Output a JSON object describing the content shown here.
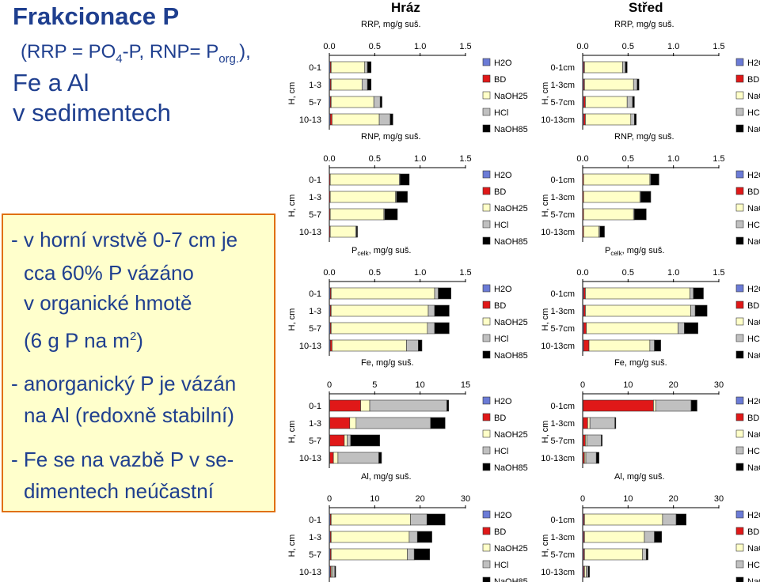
{
  "slide": {
    "title_line1": "Frakcionace P",
    "title_line2_a": "(RRP = PO",
    "title_line2_sub1": "4",
    "title_line2_b": "-P, RNP= P",
    "title_line2_sub2": "org.",
    "title_line2_c": "),",
    "title_line3": "Fe a Al",
    "title_line4": "v sedimentech",
    "column_headers": [
      "Hráz",
      "Střed"
    ],
    "notes": [
      "- v horní vrstvě 0-7 cm je",
      "cca 60% P vázáno",
      "v organické hmotě",
      "(6 g P na m",
      "- anorganický P je vázán",
      "na Al (redoxně stabilní)",
      "- Fe se na vazbě P v se-",
      "dimentech neúčastní"
    ],
    "note_sup": "2",
    "note_tail": ")"
  },
  "fractions": [
    {
      "name": "H2O",
      "color": "#6b7bd6"
    },
    {
      "name": "BD",
      "color": "#e01818"
    },
    {
      "name": "NaOH25",
      "color": "#ffffc8"
    },
    {
      "name": "HCl",
      "color": "#c0c0c0"
    },
    {
      "name": "NaOH85",
      "color": "#000000"
    }
  ],
  "ylabel": "H, cm",
  "chart_data": [
    {
      "type": "bar",
      "orientation": "horizontal",
      "stacked": true,
      "site": "Hráz",
      "title": "RRP, mg/g suš.",
      "categories": [
        "0-1",
        "1-3",
        "5-7",
        "10-13"
      ],
      "xlim": [
        0,
        1.5
      ],
      "xticks": [
        "0.0",
        "0.5",
        "1.0",
        "1.5"
      ],
      "series": [
        {
          "name": "H2O",
          "values": [
            0.01,
            0.01,
            0.01,
            0.01
          ]
        },
        {
          "name": "BD",
          "values": [
            0.01,
            0.01,
            0.01,
            0.02
          ]
        },
        {
          "name": "NaOH25",
          "values": [
            0.37,
            0.34,
            0.47,
            0.52
          ]
        },
        {
          "name": "HCl",
          "values": [
            0.03,
            0.06,
            0.07,
            0.12
          ]
        },
        {
          "name": "NaOH85",
          "values": [
            0.04,
            0.04,
            0.02,
            0.03
          ]
        }
      ]
    },
    {
      "type": "bar",
      "orientation": "horizontal",
      "stacked": true,
      "site": "Střed",
      "title": "RRP, mg/g suš.",
      "categories": [
        "0-1cm",
        "1-3cm",
        "5-7cm",
        "10-13cm"
      ],
      "xlim": [
        0,
        1.5
      ],
      "xticks": [
        "0.0",
        "0.5",
        "1.0",
        "1.5"
      ],
      "series": [
        {
          "name": "H2O",
          "values": [
            0.01,
            0.01,
            0.01,
            0.01
          ]
        },
        {
          "name": "BD",
          "values": [
            0.01,
            0.01,
            0.02,
            0.02
          ]
        },
        {
          "name": "NaOH25",
          "values": [
            0.42,
            0.54,
            0.46,
            0.5
          ]
        },
        {
          "name": "HCl",
          "values": [
            0.03,
            0.04,
            0.06,
            0.04
          ]
        },
        {
          "name": "NaOH85",
          "values": [
            0.02,
            0.02,
            0.02,
            0.02
          ]
        }
      ]
    },
    {
      "type": "bar",
      "orientation": "horizontal",
      "stacked": true,
      "site": "Hráz",
      "title": "RNP, mg/g suš.",
      "categories": [
        "0-1",
        "1-3",
        "5-7",
        "10-13"
      ],
      "xlim": [
        0,
        1.5
      ],
      "xticks": [
        "0.0",
        "0.5",
        "1.0",
        "1.5"
      ],
      "series": [
        {
          "name": "H2O",
          "values": [
            0,
            0,
            0,
            0
          ]
        },
        {
          "name": "BD",
          "values": [
            0.01,
            0.01,
            0.01,
            0.01
          ]
        },
        {
          "name": "NaOH25",
          "values": [
            0.76,
            0.72,
            0.59,
            0.28
          ]
        },
        {
          "name": "HCl",
          "values": [
            0.01,
            0.01,
            0.01,
            0.01
          ]
        },
        {
          "name": "NaOH85",
          "values": [
            0.1,
            0.12,
            0.14,
            0.01
          ]
        }
      ]
    },
    {
      "type": "bar",
      "orientation": "horizontal",
      "stacked": true,
      "site": "Střed",
      "title": "RNP, mg/g suš.",
      "categories": [
        "0-1cm",
        "1-3cm",
        "5-7cm",
        "10-13cm"
      ],
      "xlim": [
        0,
        1.5
      ],
      "xticks": [
        "0.0",
        "0.5",
        "1.0",
        "1.5"
      ],
      "series": [
        {
          "name": "H2O",
          "values": [
            0,
            0,
            0,
            0
          ]
        },
        {
          "name": "BD",
          "values": [
            0.01,
            0.01,
            0.01,
            0.01
          ]
        },
        {
          "name": "NaOH25",
          "values": [
            0.73,
            0.62,
            0.55,
            0.17
          ]
        },
        {
          "name": "HCl",
          "values": [
            0.01,
            0.01,
            0.01,
            0.01
          ]
        },
        {
          "name": "NaOH85",
          "values": [
            0.09,
            0.11,
            0.13,
            0.05
          ]
        }
      ]
    },
    {
      "type": "bar",
      "orientation": "horizontal",
      "stacked": true,
      "site": "Hráz",
      "title_main": "P",
      "title_sub": "celk",
      "title_rest": ", mg/g suš.",
      "categories": [
        "0-1",
        "1-3",
        "5-7",
        "10-13"
      ],
      "xlim": [
        0,
        1.5
      ],
      "xticks": [
        "0.0",
        "0.5",
        "1.0",
        "1.5"
      ],
      "series": [
        {
          "name": "H2O",
          "values": [
            0.01,
            0.01,
            0.01,
            0.01
          ]
        },
        {
          "name": "BD",
          "values": [
            0.01,
            0.01,
            0.01,
            0.02
          ]
        },
        {
          "name": "NaOH25",
          "values": [
            1.14,
            1.07,
            1.06,
            0.82
          ]
        },
        {
          "name": "HCl",
          "values": [
            0.04,
            0.07,
            0.08,
            0.13
          ]
        },
        {
          "name": "NaOH85",
          "values": [
            0.14,
            0.16,
            0.16,
            0.04
          ]
        }
      ]
    },
    {
      "type": "bar",
      "orientation": "horizontal",
      "stacked": true,
      "site": "Střed",
      "title_main": "P",
      "title_sub": "celk",
      "title_rest": ", mg/g suš.",
      "categories": [
        "0-1cm",
        "1-3cm",
        "5-7cm",
        "10-13cm"
      ],
      "xlim": [
        0,
        1.5
      ],
      "xticks": [
        "0.0",
        "0.5",
        "1.0",
        "1.5"
      ],
      "series": [
        {
          "name": "H2O",
          "values": [
            0.01,
            0.01,
            0.01,
            0.01
          ]
        },
        {
          "name": "BD",
          "values": [
            0.02,
            0.02,
            0.03,
            0.06
          ]
        },
        {
          "name": "NaOH25",
          "values": [
            1.15,
            1.16,
            1.01,
            0.67
          ]
        },
        {
          "name": "HCl",
          "values": [
            0.04,
            0.05,
            0.07,
            0.05
          ]
        },
        {
          "name": "NaOH85",
          "values": [
            0.11,
            0.13,
            0.15,
            0.07
          ]
        }
      ]
    },
    {
      "type": "bar",
      "orientation": "horizontal",
      "stacked": true,
      "site": "Hráz",
      "title": "Fe, mg/g suš.",
      "categories": [
        "0-1",
        "1-3",
        "5-7",
        "10-13"
      ],
      "xlim": [
        0,
        15
      ],
      "xticks": [
        "0",
        "5",
        "10",
        "15"
      ],
      "series": [
        {
          "name": "H2O",
          "values": [
            0.05,
            0.05,
            0.05,
            0.05
          ]
        },
        {
          "name": "BD",
          "values": [
            3.4,
            2.2,
            1.6,
            0.4
          ]
        },
        {
          "name": "NaOH25",
          "values": [
            1.0,
            0.7,
            0.3,
            0.5
          ]
        },
        {
          "name": "HCl",
          "values": [
            8.5,
            8.2,
            0.4,
            4.5
          ]
        },
        {
          "name": "NaOH85",
          "values": [
            0.2,
            1.6,
            3.2,
            0.3
          ]
        }
      ]
    },
    {
      "type": "bar",
      "orientation": "horizontal",
      "stacked": true,
      "site": "Střed",
      "title": "Fe, mg/g suš.",
      "categories": [
        "0-1cm",
        "1-3cm",
        "5-7cm",
        "10-13cm"
      ],
      "xlim": [
        0,
        30
      ],
      "xticks": [
        "0",
        "10",
        "20",
        "30"
      ],
      "series": [
        {
          "name": "H2O",
          "values": [
            0.1,
            0.1,
            0.1,
            0.1
          ]
        },
        {
          "name": "BD",
          "values": [
            15.5,
            1.0,
            0.5,
            0.3
          ]
        },
        {
          "name": "NaOH25",
          "values": [
            0.5,
            0.5,
            0.3,
            0.3
          ]
        },
        {
          "name": "HCl",
          "values": [
            7.8,
            5.5,
            3.2,
            2.3
          ]
        },
        {
          "name": "NaOH85",
          "values": [
            1.3,
            0.2,
            0.2,
            0.6
          ]
        }
      ]
    },
    {
      "type": "bar",
      "orientation": "horizontal",
      "stacked": true,
      "site": "Hráz",
      "title": "Al, mg/g suš.",
      "categories": [
        "0-1",
        "1-3",
        "5-7",
        "10-13"
      ],
      "xlim": [
        0,
        30
      ],
      "xticks": [
        "0",
        "10",
        "20",
        "30"
      ],
      "series": [
        {
          "name": "H2O",
          "values": [
            0.2,
            0.2,
            0.2,
            0.2
          ]
        },
        {
          "name": "BD",
          "values": [
            0.2,
            0.2,
            0.2,
            0.2
          ]
        },
        {
          "name": "NaOH25",
          "values": [
            17.5,
            17.2,
            16.8,
            0.3
          ]
        },
        {
          "name": "HCl",
          "values": [
            3.6,
            1.8,
            1.5,
            0.5
          ]
        },
        {
          "name": "NaOH85",
          "values": [
            4.0,
            3.2,
            3.4,
            0.2
          ]
        }
      ]
    },
    {
      "type": "bar",
      "orientation": "horizontal",
      "stacked": true,
      "site": "Střed",
      "title": "Al, mg/g suš.",
      "categories": [
        "0-1cm",
        "1-3cm",
        "5-7cm",
        "10-13cm"
      ],
      "xlim": [
        0,
        30
      ],
      "xticks": [
        "0",
        "10",
        "20",
        "30"
      ],
      "series": [
        {
          "name": "H2O",
          "values": [
            0.2,
            0.2,
            0.2,
            0.2
          ]
        },
        {
          "name": "BD",
          "values": [
            0.2,
            0.2,
            0.2,
            0.2
          ]
        },
        {
          "name": "NaOH25",
          "values": [
            17.2,
            13.2,
            12.8,
            0.4
          ]
        },
        {
          "name": "HCl",
          "values": [
            3.0,
            2.2,
            0.8,
            0.4
          ]
        },
        {
          "name": "NaOH85",
          "values": [
            2.2,
            1.6,
            0.4,
            0.3
          ]
        }
      ]
    }
  ]
}
